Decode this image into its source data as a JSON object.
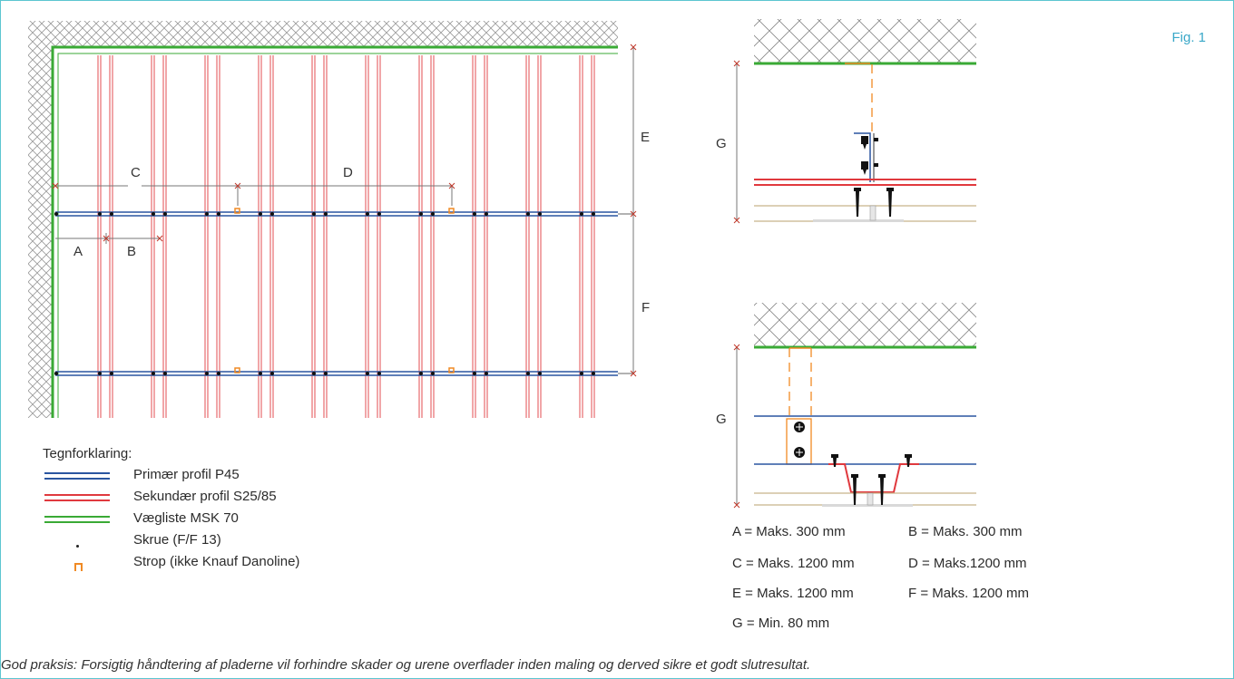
{
  "figure_label": "Fig. 1",
  "plan_labels": {
    "a": "A",
    "b": "B",
    "c": "C",
    "d": "D",
    "e": "E",
    "f": "F"
  },
  "section_labels": {
    "g_top": "G",
    "g_bottom": "G"
  },
  "legend": {
    "title": "Tegnforklaring:",
    "items": [
      {
        "label": "Primær profil P45",
        "color": "#2a55a0",
        "icon": "double-line"
      },
      {
        "label": "Sekundær profil S25/85",
        "color": "#e0393e",
        "icon": "double-line"
      },
      {
        "label": "Vægliste MSK 70",
        "color": "#3aaa35",
        "icon": "double-line"
      },
      {
        "label": "Skrue (F/F 13)",
        "color": "#222222",
        "icon": "dot"
      },
      {
        "label": "Strop (ikke Knauf Danoline)",
        "color": "#f08a24",
        "icon": "strap"
      }
    ]
  },
  "dimensions": [
    {
      "key": "a",
      "text": "A = Maks. 300 mm"
    },
    {
      "key": "b",
      "text": "B = Maks. 300 mm"
    },
    {
      "key": "c",
      "text": "C = Maks. 1200 mm"
    },
    {
      "key": "d",
      "text": "D =  Maks.1200 mm"
    },
    {
      "key": "e",
      "text": "E = Maks. 1200 mm"
    },
    {
      "key": "f",
      "text": "F = Maks. 1200 mm"
    },
    {
      "key": "g",
      "text": "G = Min. 80 mm"
    }
  ],
  "footer_note": "God praksis: Forsigtig håndtering af pladerne vil forhindre skader og urene overflader inden maling og derved sikre et godt slutresultat."
}
